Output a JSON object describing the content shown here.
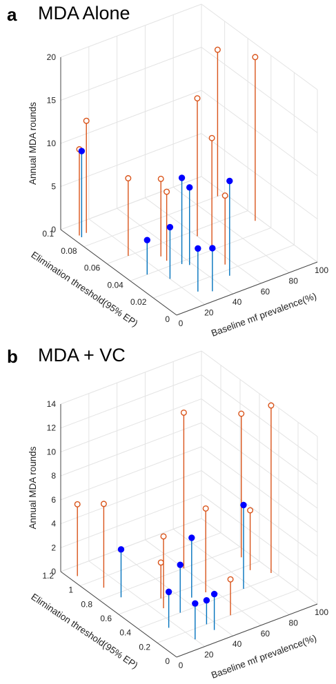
{
  "chart_data": [
    {
      "panel": "a",
      "title": "MDA Alone",
      "type": "stem3d",
      "xlabel": "Baseline mf prevalence(%)",
      "ylabel": "Elimination threshold(95% EP)",
      "zlabel": "Annual MDA rounds",
      "xlim": [
        0,
        100
      ],
      "ylim": [
        0,
        0.1
      ],
      "zlim": [
        0,
        20
      ],
      "xticks": [
        "0",
        "20",
        "40",
        "60",
        "80",
        "100"
      ],
      "yticks": [
        "0",
        "0.02",
        "0.04",
        "0.06",
        "0.08",
        "0.1"
      ],
      "zticks": [
        "0",
        "5",
        "10",
        "15",
        "20"
      ],
      "grid": true,
      "colors": {
        "orange": "#d95319",
        "blue": "#0072bd",
        "blue_marker": "#0000ff"
      },
      "series": [
        {
          "marker": "open-circle",
          "color": "orange",
          "points": [
            {
              "x": 5,
              "y": 0.09,
              "z": 10
            },
            {
              "x": 10,
              "y": 0.09,
              "z": 13
            },
            {
              "x": 15,
              "y": 0.06,
              "z": 9
            },
            {
              "x": 30,
              "y": 0.05,
              "z": 9
            },
            {
              "x": 30,
              "y": 0.045,
              "z": 8
            },
            {
              "x": 60,
              "y": 0.055,
              "z": 16
            },
            {
              "x": 58,
              "y": 0.04,
              "z": 13
            },
            {
              "x": 55,
              "y": 0.025,
              "z": 8
            },
            {
              "x": 95,
              "y": 0.08,
              "z": 17
            },
            {
              "x": 97,
              "y": 0.05,
              "z": 19
            }
          ]
        },
        {
          "marker": "filled-circle",
          "color": "blue",
          "points": [
            {
              "x": 5,
              "y": 0.088,
              "z": 10
            },
            {
              "x": 12,
              "y": 0.04,
              "z": 4
            },
            {
              "x": 20,
              "y": 0.03,
              "z": 6
            },
            {
              "x": 35,
              "y": 0.038,
              "z": 10
            },
            {
              "x": 38,
              "y": 0.035,
              "z": 9
            },
            {
              "x": 25,
              "y": 0.012,
              "z": 5
            },
            {
              "x": 32,
              "y": 0.008,
              "z": 5
            },
            {
              "x": 50,
              "y": 0.015,
              "z": 11
            }
          ]
        }
      ]
    },
    {
      "panel": "b",
      "title": "MDA + VC",
      "type": "stem3d",
      "xlabel": "Baseline mf prevalence(%)",
      "ylabel": "Elimination threshold(95% EP)",
      "zlabel": "Annual MDA rounds",
      "xlim": [
        0,
        100
      ],
      "ylim": [
        0,
        1.2
      ],
      "zlim": [
        0,
        14
      ],
      "xticks": [
        "0",
        "20",
        "40",
        "60",
        "80",
        "100"
      ],
      "yticks": [
        "0",
        "0.2",
        "0.4",
        "0.6",
        "0.8",
        "1",
        "1.2"
      ],
      "zticks": [
        "0",
        "2",
        "4",
        "6",
        "8",
        "10",
        "12",
        "14"
      ],
      "grid": true,
      "colors": {
        "orange": "#d95319",
        "blue": "#0072bd",
        "blue_marker": "#0000ff"
      },
      "series": [
        {
          "marker": "open-circle",
          "color": "orange",
          "points": [
            {
              "x": 5,
              "y": 1.1,
              "z": 6
            },
            {
              "x": 10,
              "y": 0.9,
              "z": 7
            },
            {
              "x": 25,
              "y": 0.5,
              "z": 6
            },
            {
              "x": 30,
              "y": 0.6,
              "z": 3
            },
            {
              "x": 60,
              "y": 0.8,
              "z": 13
            },
            {
              "x": 55,
              "y": 0.5,
              "z": 7
            },
            {
              "x": 52,
              "y": 0.2,
              "z": 3
            },
            {
              "x": 90,
              "y": 0.55,
              "z": 5
            },
            {
              "x": 94,
              "y": 0.7,
              "z": 12
            },
            {
              "x": 98,
              "y": 0.45,
              "z": 14
            }
          ]
        },
        {
          "marker": "filled-circle",
          "color": "blue",
          "points": [
            {
              "x": 12,
              "y": 0.75,
              "z": 4
            },
            {
              "x": 15,
              "y": 0.3,
              "z": 3
            },
            {
              "x": 20,
              "y": 0.1,
              "z": 3
            },
            {
              "x": 30,
              "y": 0.4,
              "z": 4
            },
            {
              "x": 45,
              "y": 0.5,
              "z": 5
            },
            {
              "x": 35,
              "y": 0.12,
              "z": 3
            },
            {
              "x": 35,
              "y": 0.2,
              "z": 2
            },
            {
              "x": 75,
              "y": 0.4,
              "z": 7
            }
          ]
        }
      ]
    }
  ]
}
